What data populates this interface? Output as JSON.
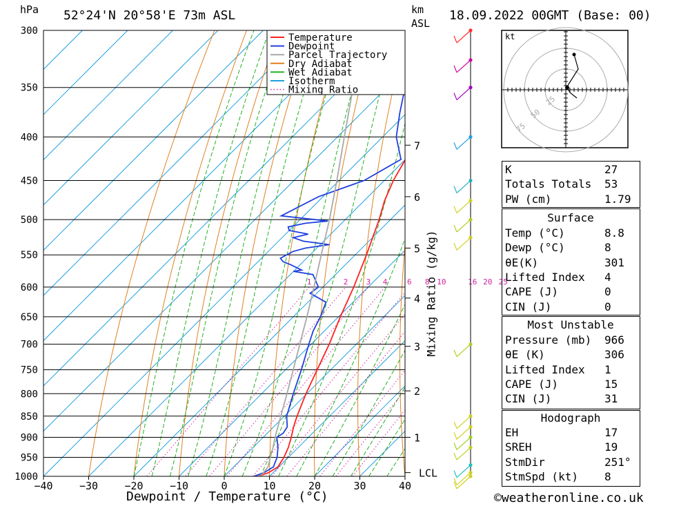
{
  "header": {
    "pressure_unit": "hPa",
    "location": "52°24'N  20°58'E  73m  ASL",
    "km_unit": "km",
    "km_sub": "ASL",
    "datetime": "18.09.2022  00GMT  (Base: 00)"
  },
  "chart_data": {
    "type": "line",
    "title": "52°24'N 20°58'E 73m ASL",
    "xlabel": "Dewpoint / Temperature (°C)",
    "ylabel": "hPa",
    "right_axis_label": "Mixing Ratio (g/kg)",
    "x_ticks": [
      -40,
      -30,
      -20,
      -10,
      0,
      10,
      20,
      30,
      40
    ],
    "x_tick_labels": [
      "−40",
      "−30",
      "−20",
      "−10",
      "0",
      "10",
      "20",
      "30",
      "40"
    ],
    "pressure_levels": [
      300,
      350,
      400,
      450,
      500,
      550,
      600,
      650,
      700,
      750,
      800,
      850,
      900,
      950,
      1000
    ],
    "pressure_labels": [
      "300",
      "350",
      "400",
      "450",
      "500",
      "550",
      "600",
      "650",
      "700",
      "750",
      "800",
      "850",
      "900",
      "950",
      "1000"
    ],
    "km_ticks": [
      {
        "km": 1,
        "p": 900
      },
      {
        "km": 2,
        "p": 794
      },
      {
        "km": 3,
        "p": 704
      },
      {
        "km": 4,
        "p": 618
      },
      {
        "km": 5,
        "p": 540
      },
      {
        "km": 6,
        "p": 470
      },
      {
        "km": 7,
        "p": 409
      }
    ],
    "lcl_label": "LCL",
    "lcl_p": 990,
    "mixing_ratio_labels": [
      "1",
      "2",
      "3",
      "4",
      "6",
      "8",
      "10",
      "16",
      "20",
      "25"
    ],
    "mixing_ratio_values": [
      1,
      2,
      3,
      4,
      6,
      8,
      10,
      16,
      20,
      25
    ],
    "series": [
      {
        "name": "Temperature",
        "color": "#ff2020",
        "points": [
          [
            1000,
            7.6
          ],
          [
            990,
            9.0
          ],
          [
            975,
            9.8
          ],
          [
            950,
            9.0
          ],
          [
            925,
            7.8
          ],
          [
            900,
            6.2
          ],
          [
            875,
            4.4
          ],
          [
            850,
            2.8
          ],
          [
            800,
            -0.2
          ],
          [
            750,
            -3.0
          ],
          [
            700,
            -6.0
          ],
          [
            650,
            -9.6
          ],
          [
            600,
            -13.2
          ],
          [
            550,
            -17.5
          ],
          [
            500,
            -22.5
          ],
          [
            475,
            -25.5
          ],
          [
            450,
            -28.0
          ],
          [
            425,
            -30.0
          ],
          [
            400,
            -33.5
          ],
          [
            375,
            -37.5
          ],
          [
            350,
            -42.0
          ],
          [
            325,
            -47.0
          ],
          [
            300,
            -52.0
          ]
        ]
      },
      {
        "name": "Dewpoint",
        "color": "#2040e0",
        "points": [
          [
            1000,
            6.6
          ],
          [
            990,
            8.0
          ],
          [
            975,
            8.8
          ],
          [
            950,
            7.5
          ],
          [
            925,
            5.5
          ],
          [
            900,
            3.0
          ],
          [
            890,
            3.5
          ],
          [
            875,
            3.0
          ],
          [
            850,
            0.5
          ],
          [
            800,
            -3.0
          ],
          [
            750,
            -6.5
          ],
          [
            700,
            -10.5
          ],
          [
            675,
            -12.5
          ],
          [
            650,
            -14.0
          ],
          [
            625,
            -16.0
          ],
          [
            610,
            -21.5
          ],
          [
            600,
            -21.0
          ],
          [
            580,
            -25.0
          ],
          [
            575,
            -30.0
          ],
          [
            573,
            -28.5
          ],
          [
            565,
            -32.0
          ],
          [
            560,
            -34.5
          ],
          [
            555,
            -35.8
          ],
          [
            545,
            -34.5
          ],
          [
            540,
            -32.5
          ],
          [
            535,
            -28.0
          ],
          [
            530,
            -34.5
          ],
          [
            525,
            -37.5
          ],
          [
            520,
            -35.0
          ],
          [
            515,
            -40.0
          ],
          [
            510,
            -41.0
          ],
          [
            505,
            -38.0
          ],
          [
            502,
            -33.5
          ],
          [
            495,
            -45.0
          ],
          [
            470,
            -41.0
          ],
          [
            450,
            -34.5
          ],
          [
            425,
            -31.0
          ],
          [
            400,
            -37.0
          ],
          [
            375,
            -41.5
          ],
          [
            350,
            -46.0
          ],
          [
            325,
            -50.0
          ],
          [
            300,
            -55.0
          ]
        ]
      },
      {
        "name": "Parcel Trajectory",
        "color": "#a8a8a8",
        "points": [
          [
            1000,
            8.0
          ],
          [
            975,
            7.6
          ],
          [
            950,
            6.0
          ],
          [
            925,
            4.4
          ],
          [
            900,
            2.6
          ],
          [
            850,
            -0.8
          ],
          [
            800,
            -4.4
          ],
          [
            750,
            -8.3
          ],
          [
            700,
            -12.5
          ],
          [
            650,
            -17.0
          ],
          [
            600,
            -22.0
          ],
          [
            550,
            -27.5
          ],
          [
            500,
            -33.5
          ],
          [
            450,
            -40.5
          ],
          [
            400,
            -48.5
          ],
          [
            350,
            -57.5
          ],
          [
            300,
            -67.5
          ]
        ]
      }
    ],
    "background_lines": [
      "Dry Adiabat",
      "Wet Adiabat",
      "Isotherm",
      "Mixing Ratio"
    ],
    "xlim": [
      -40,
      40
    ],
    "ylim": [
      1000,
      300
    ],
    "skew": "temperature axis skewed to the right"
  },
  "legend": {
    "items": [
      {
        "label": "Temperature",
        "color": "#ff2020",
        "style": "solid"
      },
      {
        "label": "Dewpoint",
        "color": "#2040e0",
        "style": "solid"
      },
      {
        "label": "Parcel Trajectory",
        "color": "#a8a8a8",
        "style": "solid"
      },
      {
        "label": "Dry Adiabat",
        "color": "#e08020",
        "style": "solid"
      },
      {
        "label": "Wet Adiabat",
        "color": "#20b020",
        "style": "solid"
      },
      {
        "label": "Isotherm",
        "color": "#20a0e0",
        "style": "solid"
      },
      {
        "label": "Mixing Ratio",
        "color": "#d020a0",
        "style": "dotted"
      }
    ]
  },
  "hodograph": {
    "unit": "kt",
    "ring_labels": [
      "25",
      "50",
      "75"
    ]
  },
  "indices": {
    "general": [
      {
        "k": "K",
        "v": "27"
      },
      {
        "k": "Totals Totals",
        "v": "53"
      },
      {
        "k": "PW (cm)",
        "v": "1.79"
      }
    ],
    "surface_title": "Surface",
    "surface": [
      {
        "k": "Temp (°C)",
        "v": "8.8"
      },
      {
        "k": "Dewp (°C)",
        "v": "8"
      },
      {
        "k": "θE(K)",
        "v": "301"
      },
      {
        "k": "Lifted Index",
        "v": "4"
      },
      {
        "k": "CAPE (J)",
        "v": "0"
      },
      {
        "k": "CIN (J)",
        "v": "0"
      }
    ],
    "mu_title": "Most Unstable",
    "most_unstable": [
      {
        "k": "Pressure (mb)",
        "v": "966"
      },
      {
        "k": "θE (K)",
        "v": "306"
      },
      {
        "k": "Lifted Index",
        "v": "1"
      },
      {
        "k": "CAPE (J)",
        "v": "15"
      },
      {
        "k": "CIN (J)",
        "v": "31"
      }
    ],
    "hodo_title": "Hodograph",
    "hodograph": [
      {
        "k": "EH",
        "v": "17"
      },
      {
        "k": "SREH",
        "v": "19"
      },
      {
        "k": "StmDir",
        "v": "251°"
      },
      {
        "k": "StmSpd (kt)",
        "v": "8"
      }
    ]
  },
  "wind_profile": {
    "levels": [
      {
        "p": 300,
        "color": "#ff3030"
      },
      {
        "p": 325,
        "color": "#d000a0"
      },
      {
        "p": 350,
        "color": "#a000c0"
      },
      {
        "p": 400,
        "color": "#20a0e0"
      },
      {
        "p": 450,
        "color": "#20b0c0"
      },
      {
        "p": 475,
        "color": "#d0d020"
      },
      {
        "p": 500,
        "color": "#b0d020"
      },
      {
        "p": 525,
        "color": "#d0d020"
      },
      {
        "p": 700,
        "color": "#b0d020"
      },
      {
        "p": 850,
        "color": "#d0d020"
      },
      {
        "p": 875,
        "color": "#d0d020"
      },
      {
        "p": 900,
        "color": "#a0d020"
      },
      {
        "p": 925,
        "color": "#c0d020"
      },
      {
        "p": 970,
        "color": "#20c0c0"
      },
      {
        "p": 990,
        "color": "#d0d020"
      },
      {
        "p": 1000,
        "color": "#d0d020"
      }
    ]
  },
  "footer": {
    "copyright": "©weatheronline.co.uk"
  }
}
